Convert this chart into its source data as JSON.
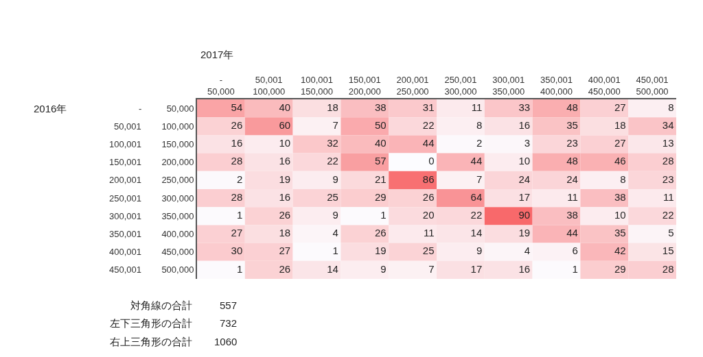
{
  "chart_data": {
    "type": "heatmap",
    "xlabel": "2017年",
    "ylabel": "2016年",
    "categories": [
      "-\n50,000",
      "50,001\n100,000",
      "100,001\n150,000",
      "150,001\n200,000",
      "200,001\n250,000",
      "250,001\n300,000",
      "300,001\n350,000",
      "350,001\n400,000",
      "400,001\n450,000",
      "450,001\n500,000"
    ],
    "y_categories": [
      "-",
      "50,001",
      "100,001",
      "150,001",
      "200,001",
      "250,001",
      "300,001",
      "350,001",
      "400,001",
      "450,001"
    ],
    "y2_categories": [
      "50,000",
      "100,000",
      "150,000",
      "200,000",
      "250,000",
      "300,000",
      "350,000",
      "400,000",
      "450,000",
      "500,000"
    ],
    "cells": [
      [
        54,
        40,
        18,
        38,
        31,
        11,
        33,
        48,
        27,
        8
      ],
      [
        26,
        60,
        7,
        50,
        22,
        8,
        16,
        35,
        18,
        34
      ],
      [
        16,
        10,
        32,
        40,
        44,
        2,
        3,
        23,
        27,
        13
      ],
      [
        28,
        16,
        22,
        57,
        0,
        44,
        10,
        48,
        46,
        28
      ],
      [
        2,
        19,
        9,
        21,
        86,
        7,
        24,
        24,
        8,
        23
      ],
      [
        28,
        16,
        25,
        29,
        26,
        64,
        17,
        11,
        38,
        11
      ],
      [
        1,
        26,
        9,
        1,
        20,
        22,
        90,
        38,
        10,
        22
      ],
      [
        27,
        18,
        4,
        26,
        11,
        14,
        19,
        44,
        35,
        5
      ],
      [
        30,
        27,
        1,
        19,
        25,
        9,
        4,
        6,
        42,
        15
      ],
      [
        1,
        26,
        14,
        9,
        7,
        17,
        16,
        1,
        29,
        28
      ]
    ],
    "data_labels": true,
    "annotations": [
      "対角線の合計",
      "557",
      "左下三角形の合計",
      "732",
      "右上三角形の合計",
      "1060"
    ]
  }
}
